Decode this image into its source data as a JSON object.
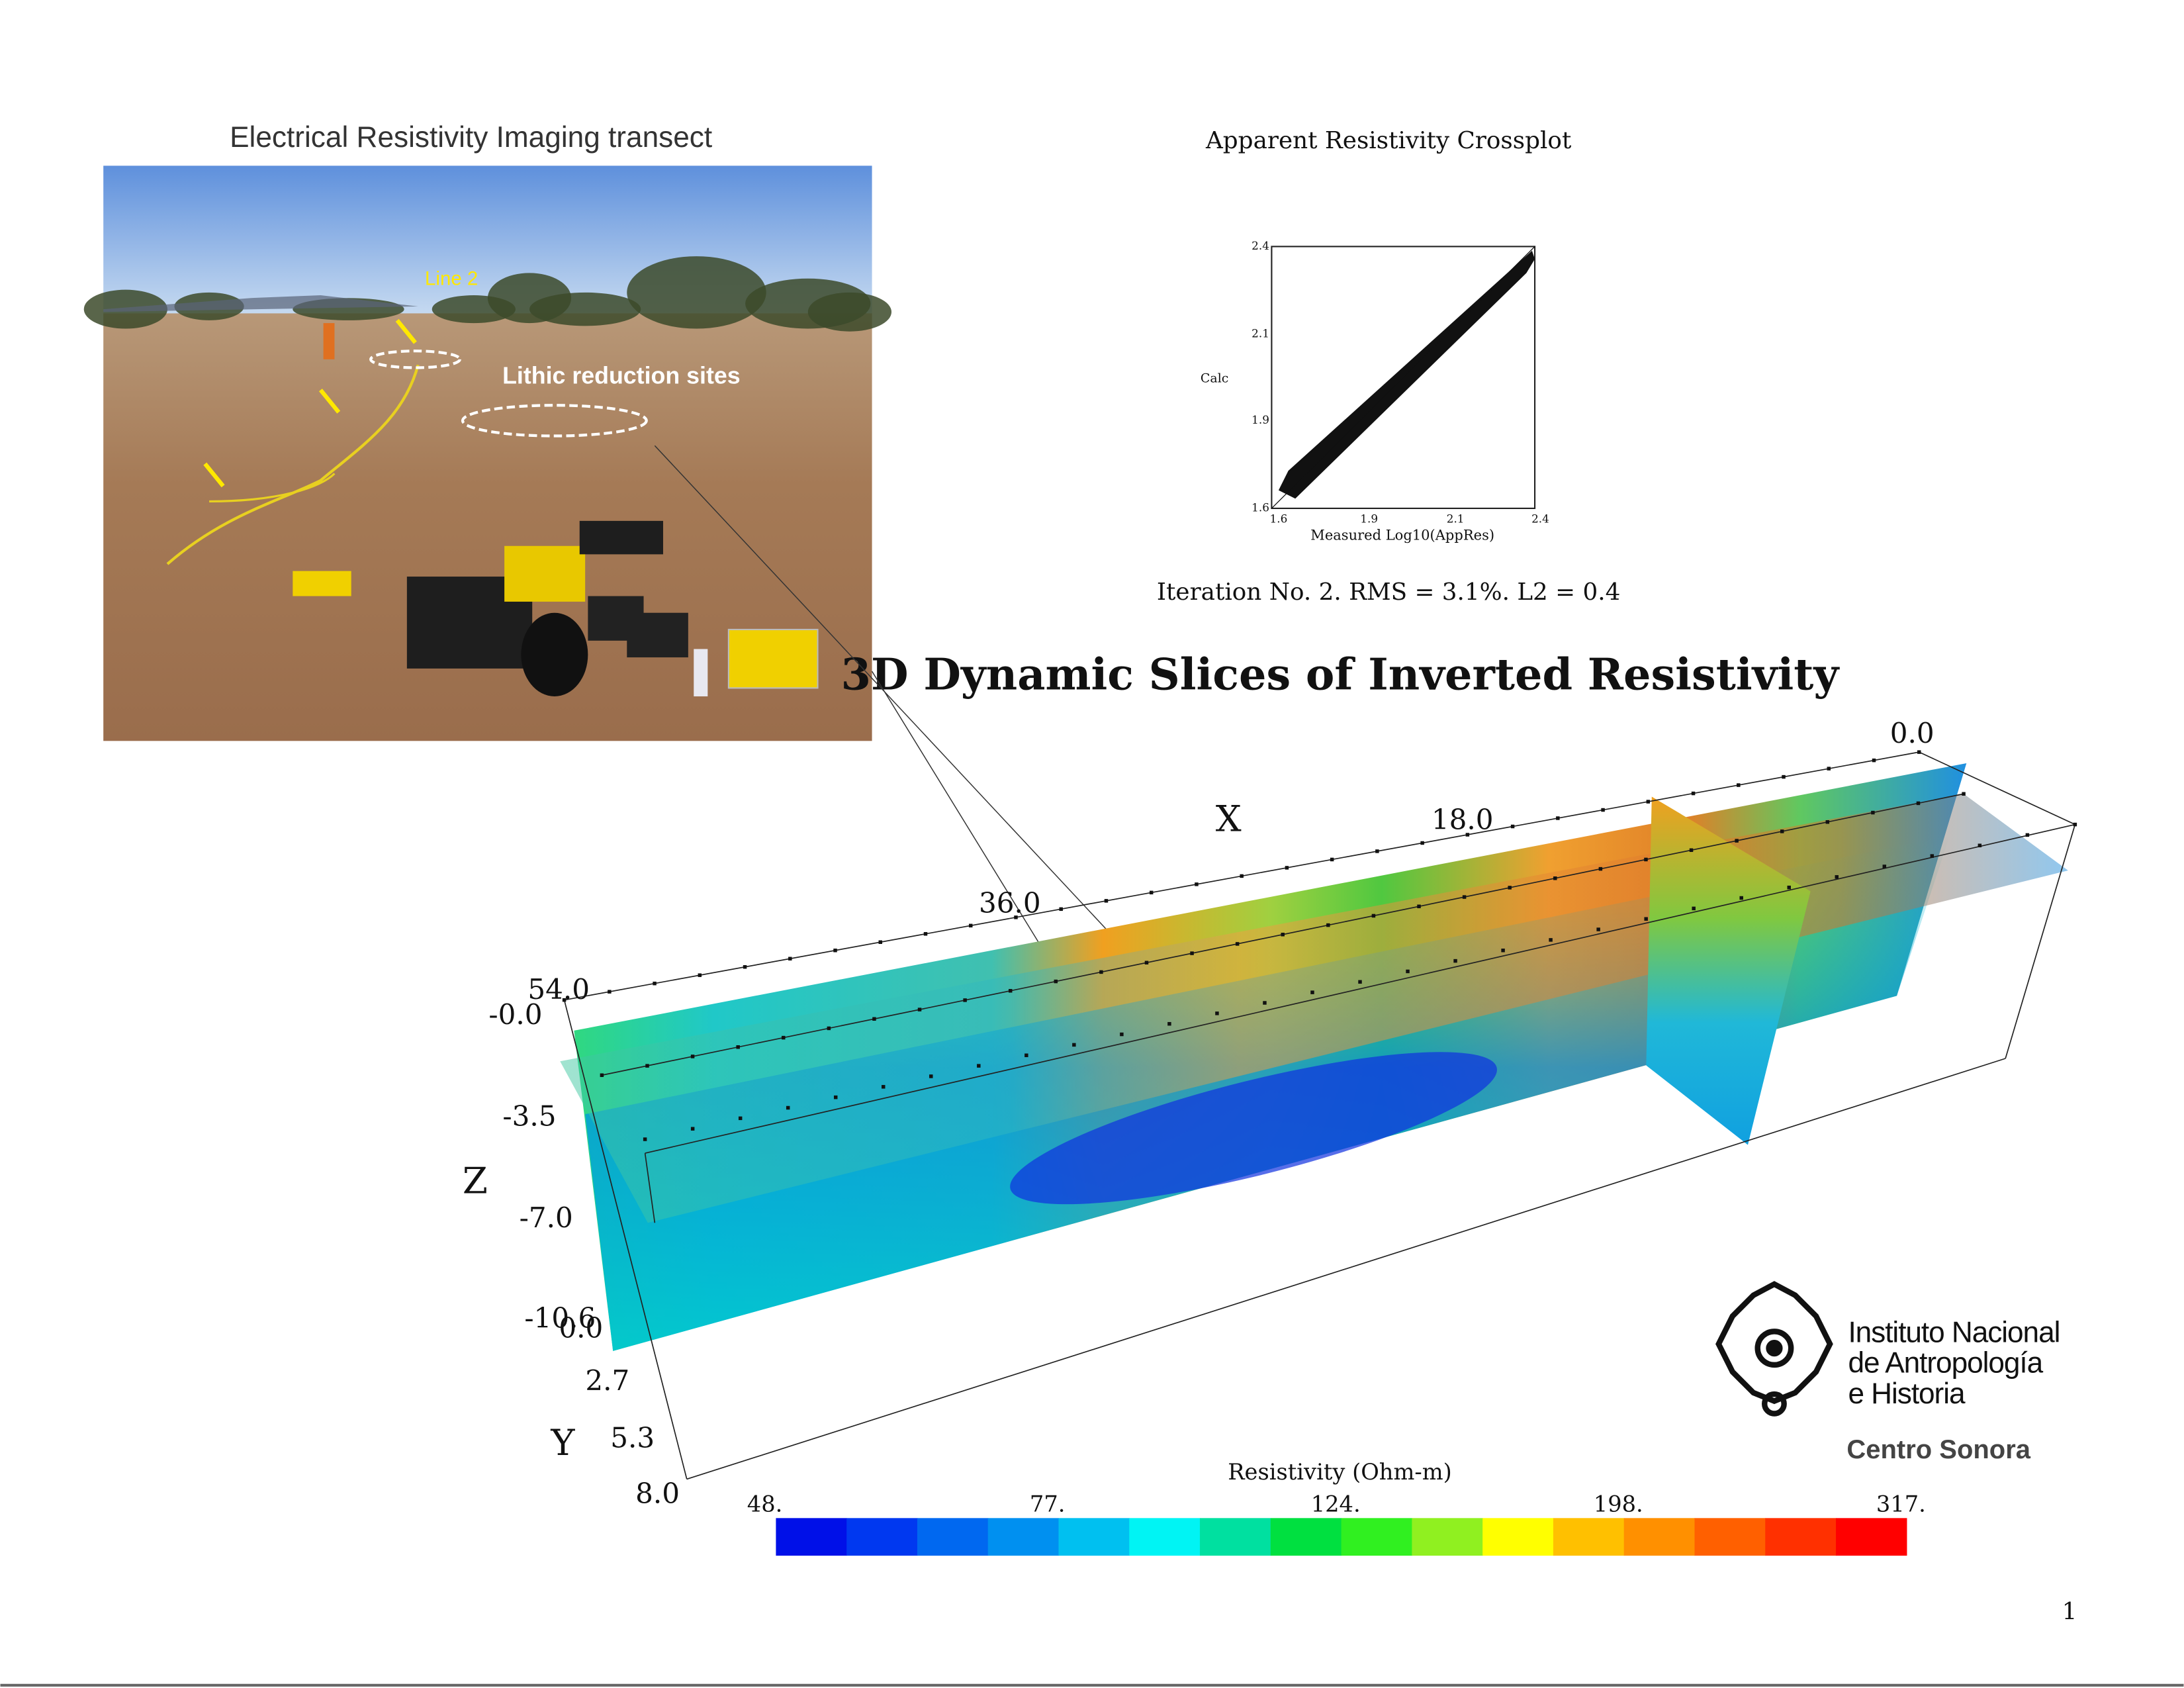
{
  "photo": {
    "title": "Electrical Resistivity Imaging transect",
    "annotations": [
      "Line 2",
      "Lithic reduction sites"
    ]
  },
  "crossplot": {
    "title": "Apparent Resistivity Crossplot",
    "y_label": "Calc",
    "x_label": "Measured Log10(AppRes)",
    "x_ticks": [
      "1.6",
      "1.9",
      "2.1",
      "2.4"
    ],
    "y_ticks": [
      "2.4",
      "2.1",
      "1.9",
      "1.6"
    ],
    "caption": "Iteration No. 2.  RMS = 3.1%.  L2 = 0.4"
  },
  "model": {
    "title": "3D Dynamic Slices of Inverted Resistivity",
    "x_axis": {
      "label": "X",
      "ticks": [
        "0.0",
        "18.0",
        "36.0",
        "54.0"
      ]
    },
    "z_axis": {
      "label": "Z",
      "ticks": [
        "-0.0",
        "-3.5",
        "-7.0",
        "-10.6"
      ]
    },
    "y_axis": {
      "label": "Y",
      "ticks": [
        "0.0",
        "2.7",
        "5.3",
        "8.0"
      ]
    }
  },
  "colorbar": {
    "title": "Resistivity (Ohm-m)",
    "labels": [
      "48.",
      "77.",
      "124.",
      "198.",
      "317."
    ],
    "colors": [
      "#0010e8",
      "#0038f0",
      "#0068f0",
      "#0090f0",
      "#00c0f0",
      "#00f4f4",
      "#00e0a0",
      "#00e040",
      "#30f020",
      "#90f020",
      "#ffff00",
      "#ffc000",
      "#ff9000",
      "#ff6000",
      "#ff3000",
      "#ff0000"
    ]
  },
  "logo": {
    "lines": [
      "Instituto Nacional",
      "de Antropología",
      "e Historia"
    ],
    "center": "Centro Sonora"
  },
  "page_number": "1"
}
